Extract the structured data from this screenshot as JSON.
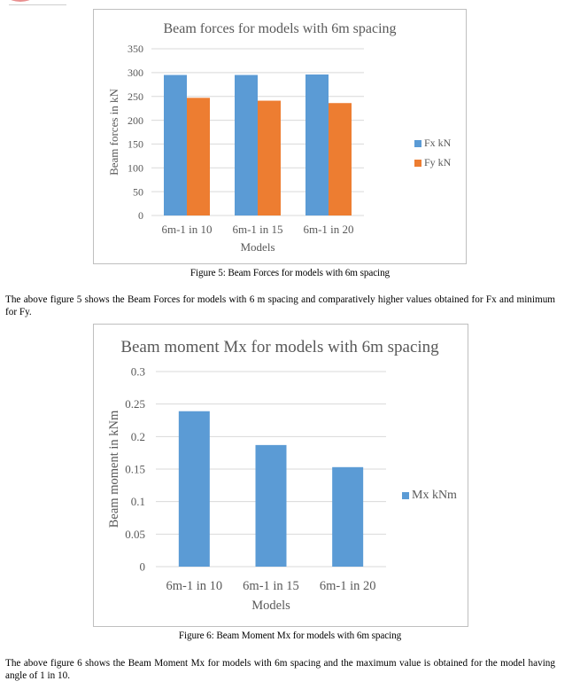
{
  "figure5": {
    "caption": "Figure 5: Beam Forces for models with 6m spacing",
    "paragraph": "The above figure 5 shows the Beam Forces for models with 6 m spacing and comparatively higher values obtained for Fx and minimum for Fy."
  },
  "figure6": {
    "caption": "Figure 6: Beam Moment Mx for models with 6m spacing",
    "paragraph": "The above figure 6 shows the Beam Moment Mx for models with 6m spacing and the maximum value is obtained for the model having angle of 1 in 10."
  },
  "chart_data": [
    {
      "type": "bar",
      "title": "Beam forces for models with 6m spacing",
      "xlabel": "Models",
      "ylabel": "Beam forces in kN",
      "categories": [
        "6m-1 in 10",
        "6m-1 in 15",
        "6m-1 in 20"
      ],
      "series": [
        {
          "name": "Fx kN",
          "values": [
            295,
            295,
            296
          ],
          "color": "#5b9bd5"
        },
        {
          "name": "Fy kN",
          "values": [
            247,
            241,
            236
          ],
          "color": "#ed7d31"
        }
      ],
      "ylim": [
        0,
        350
      ],
      "yticks": [
        "0",
        "50",
        "100",
        "150",
        "200",
        "250",
        "300",
        "350"
      ],
      "ytick_values": [
        0,
        50,
        100,
        150,
        200,
        250,
        300,
        350
      ],
      "grid": true,
      "legend": "right"
    },
    {
      "type": "bar",
      "title": "Beam moment Mx for models with 6m spacing",
      "xlabel": "Models",
      "ylabel": "Beam moment in kNm",
      "categories": [
        "6m-1 in 10",
        "6m-1 in 15",
        "6m-1 in 20"
      ],
      "series": [
        {
          "name": "Mx kNm",
          "values": [
            0.239,
            0.187,
            0.153
          ],
          "color": "#5b9bd5"
        }
      ],
      "ylim": [
        0,
        0.3
      ],
      "yticks": [
        "0",
        "0.05",
        "0.1",
        "0.15",
        "0.2",
        "0.25",
        "0.3"
      ],
      "ytick_values": [
        0,
        0.05,
        0.1,
        0.15,
        0.2,
        0.25,
        0.3
      ],
      "grid": true,
      "legend": "right"
    }
  ]
}
